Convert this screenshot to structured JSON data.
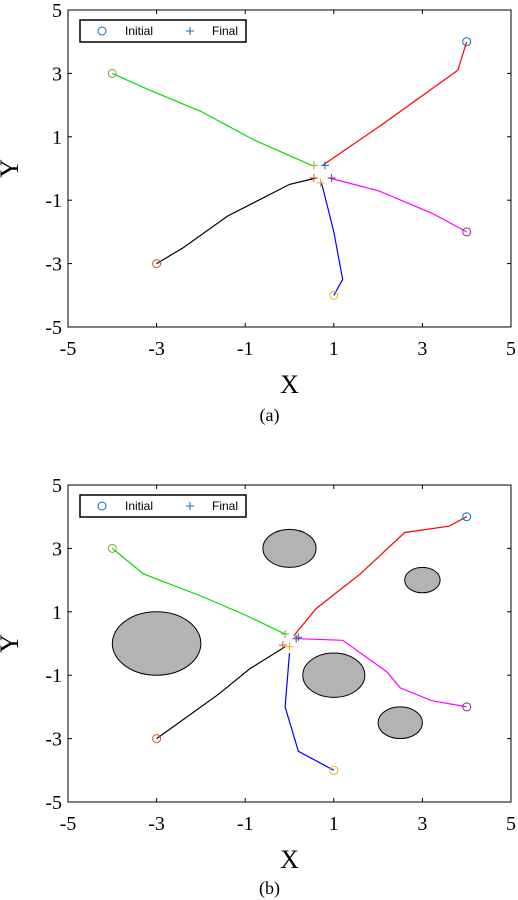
{
  "chart_data": [
    {
      "type": "line",
      "caption": "(a)",
      "xlabel": "X",
      "ylabel": "Y",
      "xlim": [
        -5,
        5
      ],
      "ylim": [
        -5,
        5
      ],
      "xticks": [
        "-5",
        "-3",
        "-1",
        "1",
        "3",
        "5"
      ],
      "yticks": [
        "5",
        "3",
        "1",
        "-1",
        "-3",
        "-5"
      ],
      "legend": {
        "placement": "top-left",
        "entries": [
          {
            "label": "Initial",
            "marker": "circle",
            "color": "#0072bd"
          },
          {
            "label": "Final",
            "marker": "plus",
            "color": "#0072bd"
          }
        ]
      },
      "obstacles": [],
      "series": [
        {
          "color": "#ff0000",
          "points": [
            [
              4,
              4
            ],
            [
              3.8,
              3.1
            ],
            [
              3.0,
              2.3
            ],
            [
              2.0,
              1.3
            ],
            [
              0.75,
              0.1
            ]
          ]
        },
        {
          "color": "#00dd00",
          "points": [
            [
              -4,
              3
            ],
            [
              -3.2,
              2.5
            ],
            [
              -2.0,
              1.8
            ],
            [
              -0.8,
              0.9
            ],
            [
              0.5,
              0.1
            ]
          ]
        },
        {
          "color": "#ff00ff",
          "points": [
            [
              4,
              -2
            ],
            [
              3.2,
              -1.4
            ],
            [
              2.0,
              -0.7
            ],
            [
              0.9,
              -0.3
            ]
          ]
        },
        {
          "color": "#0000ff",
          "points": [
            [
              1,
              -4
            ],
            [
              1.2,
              -3.5
            ],
            [
              1.0,
              -2.0
            ],
            [
              0.75,
              -0.6
            ],
            [
              0.7,
              -0.4
            ]
          ]
        },
        {
          "color": "#000000",
          "points": [
            [
              -3,
              -3
            ],
            [
              -2.4,
              -2.5
            ],
            [
              -1.4,
              -1.5
            ],
            [
              0.0,
              -0.5
            ],
            [
              0.6,
              -0.3
            ]
          ]
        }
      ],
      "initial_markers": [
        {
          "x": 4,
          "y": 4,
          "color": "#0072bd"
        },
        {
          "x": -4,
          "y": 3,
          "color": "#77ac30"
        },
        {
          "x": 4,
          "y": -2,
          "color": "#7e2f8e"
        },
        {
          "x": 1,
          "y": -4,
          "color": "#edb120"
        },
        {
          "x": -3,
          "y": -3,
          "color": "#d95319"
        }
      ],
      "final_markers": [
        {
          "x": 0.8,
          "y": 0.1,
          "color": "#0072bd"
        },
        {
          "x": 0.55,
          "y": 0.1,
          "color": "#77ac30"
        },
        {
          "x": 0.95,
          "y": -0.3,
          "color": "#7e2f8e"
        },
        {
          "x": 0.7,
          "y": -0.45,
          "color": "#edb120"
        },
        {
          "x": 0.55,
          "y": -0.3,
          "color": "#d95319"
        }
      ]
    },
    {
      "type": "line",
      "caption": "(b)",
      "xlabel": "X",
      "ylabel": "Y",
      "xlim": [
        -5,
        5
      ],
      "ylim": [
        -5,
        5
      ],
      "xticks": [
        "-5",
        "-3",
        "-1",
        "1",
        "3",
        "5"
      ],
      "yticks": [
        "5",
        "3",
        "1",
        "-1",
        "-3",
        "-5"
      ],
      "legend": {
        "placement": "top-left",
        "entries": [
          {
            "label": "Initial",
            "marker": "circle",
            "color": "#0072bd"
          },
          {
            "label": "Final",
            "marker": "plus",
            "color": "#0072bd"
          }
        ]
      },
      "obstacles": [
        {
          "cx": -3,
          "cy": 0,
          "rx": 1,
          "ry": 1
        },
        {
          "cx": 0,
          "cy": 3,
          "rx": 0.6,
          "ry": 0.6
        },
        {
          "cx": 1,
          "cy": -1,
          "rx": 0.7,
          "ry": 0.7
        },
        {
          "cx": 3,
          "cy": 2,
          "rx": 0.4,
          "ry": 0.4
        },
        {
          "cx": 2.5,
          "cy": -2.5,
          "rx": 0.5,
          "ry": 0.5
        }
      ],
      "series": [
        {
          "color": "#ff0000",
          "points": [
            [
              4,
              4
            ],
            [
              3.6,
              3.7
            ],
            [
              2.6,
              3.5
            ],
            [
              1.6,
              2.2
            ],
            [
              0.6,
              1.1
            ],
            [
              0.1,
              0.25
            ]
          ]
        },
        {
          "color": "#00dd00",
          "points": [
            [
              -4,
              3
            ],
            [
              -3.3,
              2.2
            ],
            [
              -2.0,
              1.5
            ],
            [
              -1.0,
              0.9
            ],
            [
              -0.1,
              0.3
            ]
          ]
        },
        {
          "color": "#ff00ff",
          "points": [
            [
              4,
              -2
            ],
            [
              3.2,
              -1.8
            ],
            [
              2.5,
              -1.4
            ],
            [
              2.2,
              -0.9
            ],
            [
              1.2,
              0.1
            ],
            [
              0.2,
              0.15
            ]
          ]
        },
        {
          "color": "#0000ff",
          "points": [
            [
              1,
              -4
            ],
            [
              0.2,
              -3.4
            ],
            [
              -0.1,
              -2.0
            ],
            [
              0,
              -0.3
            ]
          ]
        },
        {
          "color": "#000000",
          "points": [
            [
              -3,
              -3
            ],
            [
              -2.5,
              -2.5
            ],
            [
              -1.6,
              -1.6
            ],
            [
              -0.9,
              -0.8
            ],
            [
              -0.1,
              -0.1
            ]
          ]
        }
      ],
      "initial_markers": [
        {
          "x": 4,
          "y": 4,
          "color": "#0072bd"
        },
        {
          "x": -4,
          "y": 3,
          "color": "#77ac30"
        },
        {
          "x": 4,
          "y": -2,
          "color": "#7e2f8e"
        },
        {
          "x": 1,
          "y": -4,
          "color": "#edb120"
        },
        {
          "x": -3,
          "y": -3,
          "color": "#d95319"
        }
      ],
      "final_markers": [
        {
          "x": 0.2,
          "y": 0.2,
          "color": "#0072bd"
        },
        {
          "x": -0.1,
          "y": 0.3,
          "color": "#77ac30"
        },
        {
          "x": 0.15,
          "y": 0.15,
          "color": "#7e2f8e"
        },
        {
          "x": 0.0,
          "y": -0.1,
          "color": "#edb120"
        },
        {
          "x": -0.15,
          "y": -0.05,
          "color": "#d95319"
        }
      ]
    }
  ]
}
